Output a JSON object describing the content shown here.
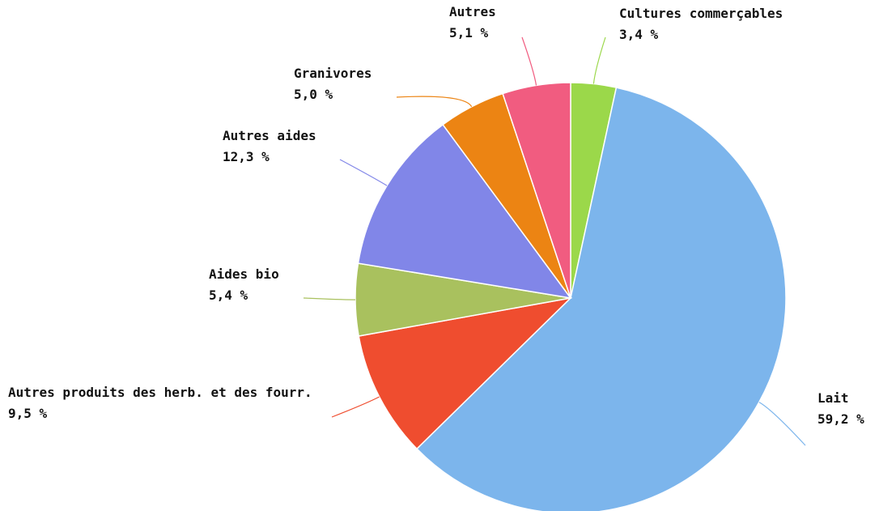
{
  "chart_data": {
    "type": "pie",
    "categories": [
      "Cultures commerçables",
      "Lait",
      "Autres produits des herb. et des fourr.",
      "Aides bio",
      "Autres aides",
      "Granivores",
      "Autres"
    ],
    "values": [
      3.4,
      59.2,
      9.5,
      5.4,
      12.3,
      5.0,
      5.1
    ],
    "value_labels": [
      "3,4 %",
      "59,2 %",
      "9,5 %",
      "5,4 %",
      "12,3 %",
      "5,0 %",
      "5,1 %"
    ],
    "colors": [
      "#9bd84a",
      "#7cb5ec",
      "#ef4d2f",
      "#a9c15e",
      "#8186e8",
      "#ec8413",
      "#f15c80"
    ]
  }
}
